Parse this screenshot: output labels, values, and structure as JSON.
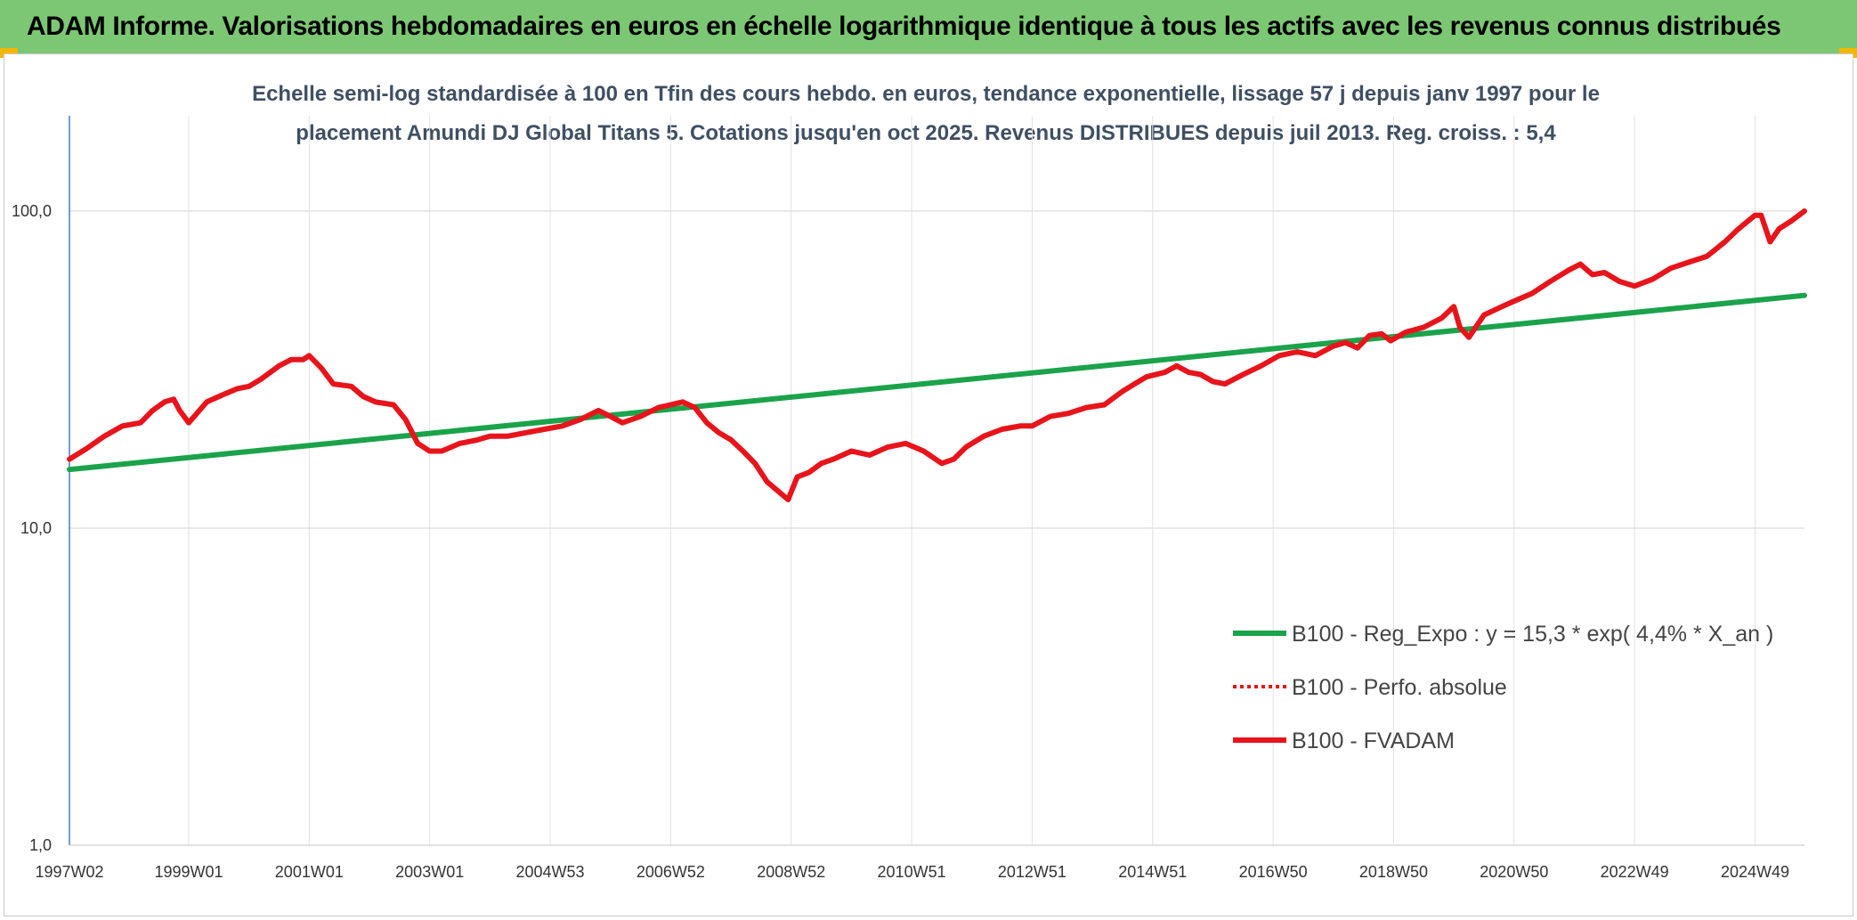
{
  "header": {
    "title": "ADAM Informe. Valorisations hebdomadaires en euros en échelle logarithmique identique à tous les actifs avec les revenus connus distribués"
  },
  "chart_data": {
    "type": "line",
    "title_line1": "Echelle semi-log standardisée à 100 en Tfin des cours hebdo. en euros, tendance exponentielle, lissage 57 j depuis janv 1997 pour le",
    "title_line2": "placement Amundi DJ Global Titans 5. Cotations jusqu'en oct 2025. Revenus DISTRIBUES depuis juil 2013. Reg. croiss. : 5,4",
    "y_scale": "log",
    "ylim": [
      1,
      200
    ],
    "xlim": [
      1997.02,
      2025.82
    ],
    "y_ticks": [
      {
        "value": 1,
        "label": "1,0"
      },
      {
        "value": 10,
        "label": "10,0"
      },
      {
        "value": 100,
        "label": "100,0"
      }
    ],
    "x_ticks": [
      {
        "value": 1997.02,
        "label": "1997W02"
      },
      {
        "value": 1999.0,
        "label": "1999W01"
      },
      {
        "value": 2001.0,
        "label": "2001W01"
      },
      {
        "value": 2003.0,
        "label": "2003W01"
      },
      {
        "value": 2005.0,
        "label": "2004W53"
      },
      {
        "value": 2007.0,
        "label": "2006W52"
      },
      {
        "value": 2009.0,
        "label": "2008W52"
      },
      {
        "value": 2011.0,
        "label": "2010W51"
      },
      {
        "value": 2013.0,
        "label": "2012W51"
      },
      {
        "value": 2015.0,
        "label": "2014W51"
      },
      {
        "value": 2017.0,
        "label": "2016W50"
      },
      {
        "value": 2019.0,
        "label": "2018W50"
      },
      {
        "value": 2021.0,
        "label": "2020W50"
      },
      {
        "value": 2023.0,
        "label": "2022W49"
      },
      {
        "value": 2025.0,
        "label": "2024W49"
      }
    ],
    "grid": "vertical and horizontal",
    "legend_position": "bottom-right",
    "series": [
      {
        "name": "B100 - Reg_Expo : y = 15,3 * exp( 4,4% *  X_an )",
        "color": "#1aa34a",
        "style": "solid",
        "x": [
          1997.02,
          2025.82
        ],
        "y": [
          15.3,
          54.2
        ]
      },
      {
        "name": "B100 - Perfo. absolue",
        "color": "#e8141b",
        "style": "dotted",
        "x": [],
        "y": []
      },
      {
        "name": "B100 - FVADAM",
        "color": "#e8141b",
        "style": "solid",
        "x": [
          1997.02,
          1997.3,
          1997.6,
          1997.9,
          1998.2,
          1998.4,
          1998.6,
          1998.75,
          1998.85,
          1999.0,
          1999.3,
          1999.6,
          1999.8,
          2000.0,
          2000.2,
          2000.5,
          2000.7,
          2000.9,
          2001.0,
          2001.2,
          2001.4,
          2001.7,
          2001.9,
          2002.1,
          2002.4,
          2002.6,
          2002.8,
          2003.0,
          2003.2,
          2003.5,
          2003.8,
          2004.0,
          2004.3,
          2004.6,
          2004.9,
          2005.2,
          2005.5,
          2005.8,
          2006.0,
          2006.2,
          2006.35,
          2006.5,
          2006.8,
          2007.0,
          2007.2,
          2007.4,
          2007.6,
          2007.8,
          2008.0,
          2008.2,
          2008.4,
          2008.6,
          2008.8,
          2008.95,
          2009.1,
          2009.3,
          2009.5,
          2009.7,
          2010.0,
          2010.3,
          2010.6,
          2010.9,
          2011.2,
          2011.5,
          2011.7,
          2011.9,
          2012.2,
          2012.5,
          2012.8,
          2013.0,
          2013.3,
          2013.6,
          2013.9,
          2014.2,
          2014.5,
          2014.7,
          2014.9,
          2015.2,
          2015.4,
          2015.6,
          2015.8,
          2016.0,
          2016.2,
          2016.5,
          2016.8,
          2017.1,
          2017.4,
          2017.7,
          2018.0,
          2018.2,
          2018.4,
          2018.6,
          2018.8,
          2018.95,
          2019.2,
          2019.5,
          2019.8,
          2020.0,
          2020.1,
          2020.25,
          2020.5,
          2020.8,
          2021.0,
          2021.3,
          2021.6,
          2021.9,
          2022.1,
          2022.3,
          2022.5,
          2022.75,
          2023.0,
          2023.3,
          2023.6,
          2023.9,
          2024.2,
          2024.5,
          2024.7,
          2024.85,
          2025.0,
          2025.1,
          2025.25,
          2025.4,
          2025.6,
          2025.82
        ],
        "y": [
          16.5,
          17.8,
          19.5,
          21.0,
          21.5,
          23.5,
          25.0,
          25.5,
          23.5,
          21.5,
          25.0,
          26.5,
          27.5,
          28.0,
          29.5,
          32.5,
          34.0,
          34.0,
          35.0,
          32.0,
          28.5,
          28.0,
          26.0,
          25.0,
          24.5,
          22.0,
          18.5,
          17.5,
          17.5,
          18.5,
          19.0,
          19.5,
          19.5,
          20.0,
          20.5,
          21.0,
          22.0,
          23.5,
          22.5,
          21.5,
          22.0,
          22.5,
          24.0,
          24.5,
          25.0,
          24.0,
          21.5,
          20.0,
          19.0,
          17.5,
          16.0,
          14.0,
          13.0,
          12.3,
          14.5,
          15.0,
          16.0,
          16.5,
          17.5,
          17.0,
          18.0,
          18.5,
          17.5,
          16.0,
          16.5,
          18.0,
          19.5,
          20.5,
          21.0,
          21.0,
          22.5,
          23.0,
          24.0,
          24.5,
          27.0,
          28.5,
          30.0,
          31.0,
          32.5,
          31.0,
          30.5,
          29.0,
          28.5,
          30.5,
          32.5,
          35.0,
          36.0,
          35.0,
          37.5,
          38.5,
          37.0,
          40.5,
          41.0,
          39.0,
          41.5,
          43.0,
          46.0,
          50.0,
          43.0,
          40.0,
          47.0,
          50.0,
          52.0,
          55.0,
          60.0,
          65.0,
          68.0,
          63.0,
          64.0,
          60.0,
          58.0,
          61.0,
          66.0,
          69.0,
          72.0,
          80.0,
          87.0,
          92.0,
          97.0,
          97.0,
          80.0,
          88.0,
          93.0,
          100.0
        ]
      }
    ]
  }
}
